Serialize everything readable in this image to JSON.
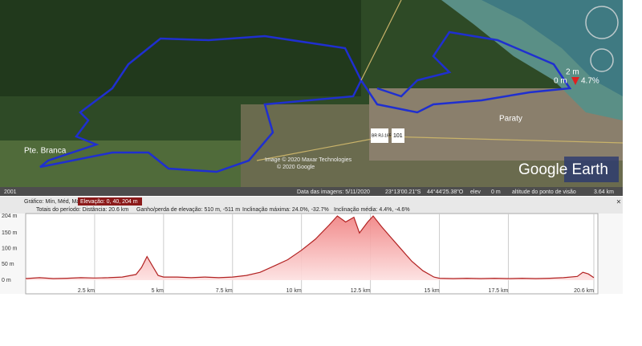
{
  "map": {
    "place_left": "Pte. Branca",
    "place_right": "Paraty",
    "credit_1": "Image © 2020 Maxar Technologies",
    "credit_2": "© 2020 Google",
    "brand": "Google Earth",
    "road_1": "BR RJ-165",
    "road_2": "101",
    "marker_elev": "2 m",
    "marker_zero": "0 m",
    "marker_slope": "4.7%",
    "year": "2001",
    "status": {
      "date": "Data das imagens: 5/11/2020",
      "lat": "23°13'00.21\"S",
      "lon": "44°44'25.38\"O",
      "elev_label": "elev",
      "elev_value": "0 m",
      "eye_label": "altitude do ponto de visão",
      "eye_value": "3.64 km"
    }
  },
  "profile_header": {
    "graph": "Gráfico: Mín, Méd, Máx",
    "elevation": "Elevação: 0, 40, 204 m",
    "totals": "Totais do período: Distância: 20.6 km",
    "gain": "Ganho/perda de elevação: 510 m, -511 m",
    "max_slope": "Inclinação máxima: 24.0%, -32.7%",
    "avg_slope": "Inclinação média: 4.4%, -4.6%",
    "close": "×"
  },
  "chart_data": {
    "type": "area",
    "color": "#b22222",
    "x": [
      0,
      0.5,
      1,
      1.5,
      2,
      2.5,
      3,
      3.5,
      4,
      4.2,
      4.4,
      4.6,
      4.8,
      5,
      5.5,
      6,
      6.5,
      7,
      7.5,
      8,
      8.5,
      9,
      9.5,
      10,
      10.5,
      11,
      11.3,
      11.6,
      11.9,
      12.1,
      12.4,
      12.6,
      12.9,
      13.2,
      13.6,
      14,
      14.4,
      14.8,
      15,
      15.5,
      16,
      16.5,
      17,
      17.5,
      18,
      18.5,
      19,
      19.5,
      20,
      20.2,
      20.4,
      20.6
    ],
    "values": [
      5,
      8,
      5,
      6,
      8,
      7,
      8,
      10,
      18,
      40,
      75,
      45,
      15,
      10,
      10,
      8,
      10,
      8,
      10,
      15,
      25,
      45,
      65,
      95,
      130,
      175,
      204,
      185,
      200,
      150,
      185,
      204,
      170,
      140,
      100,
      60,
      30,
      10,
      6,
      5,
      6,
      5,
      6,
      5,
      6,
      5,
      6,
      8,
      12,
      25,
      20,
      8
    ],
    "xlim": [
      0,
      20.6
    ],
    "ylim": [
      0,
      204
    ],
    "xticks": [
      {
        "value": 2.5,
        "label": "2.5 km"
      },
      {
        "value": 5,
        "label": "5 km"
      },
      {
        "value": 7.5,
        "label": "7.5 km"
      },
      {
        "value": 10,
        "label": "10 km"
      },
      {
        "value": 12.5,
        "label": "12.5 km"
      },
      {
        "value": 15,
        "label": "15 km"
      },
      {
        "value": 17.5,
        "label": "17.5 km"
      },
      {
        "value": 20.6,
        "label": "20.6 km"
      }
    ],
    "yticks": [
      {
        "value": 0,
        "label": "0 m"
      },
      {
        "value": 50,
        "label": "50 m"
      },
      {
        "value": 100,
        "label": "100 m"
      },
      {
        "value": 150,
        "label": "150 m"
      },
      {
        "value": 204,
        "label": "204 m"
      }
    ],
    "grid": true
  }
}
